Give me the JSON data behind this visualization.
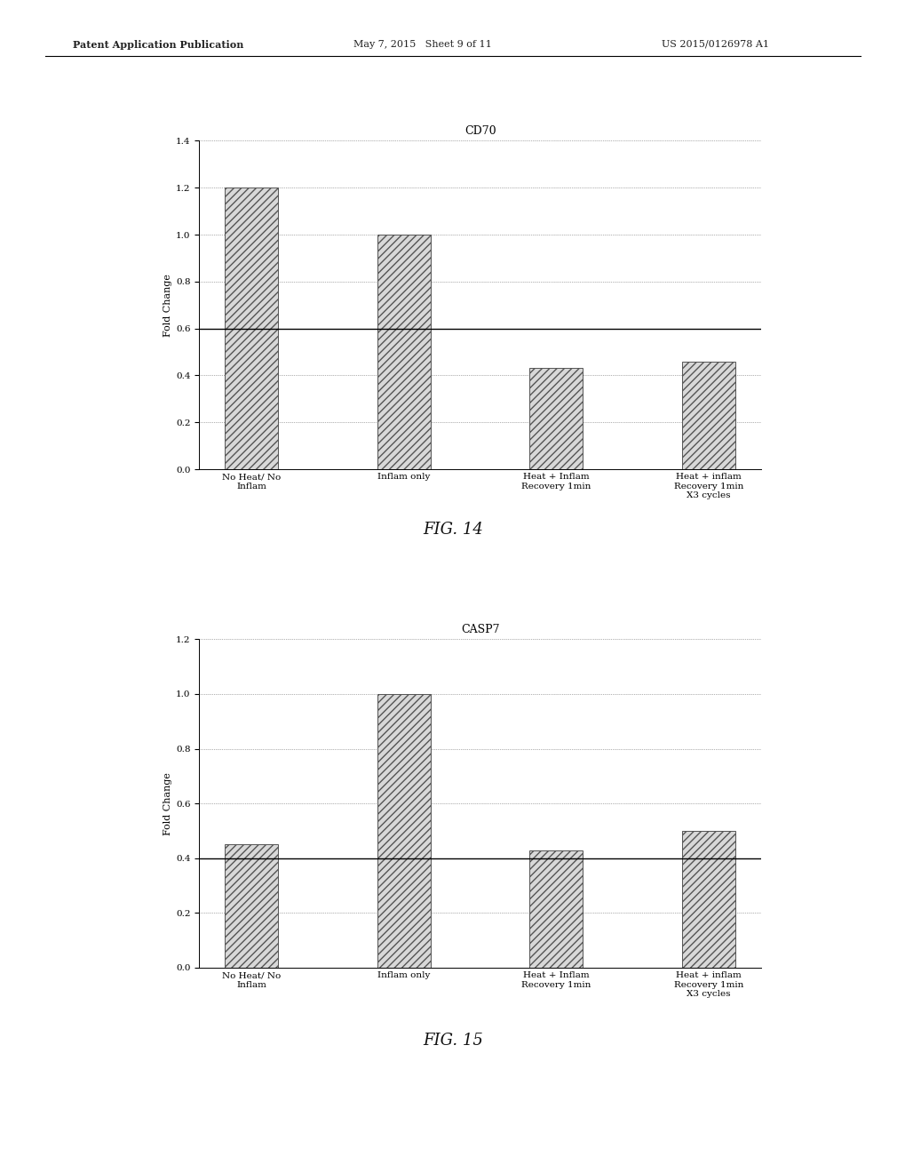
{
  "chart1": {
    "title": "CD70",
    "ylabel": "Fold Change",
    "categories": [
      "No Heat/ No\nInflam",
      "Inflam only",
      "Heat + Inflam\nRecovery 1min",
      "Heat + inflam\nRecovery 1min\nX3 cycles"
    ],
    "values": [
      1.2,
      1.0,
      0.43,
      0.46
    ],
    "ylim": [
      0,
      1.4
    ],
    "yticks": [
      0,
      0.2,
      0.4,
      0.6,
      0.8,
      1.0,
      1.2,
      1.4
    ],
    "hline_y": 0.6,
    "fig_label": "FIG. 14"
  },
  "chart2": {
    "title": "CASP7",
    "ylabel": "Fold Change",
    "categories": [
      "No Heat/ No\nInflam",
      "Inflam only",
      "Heat + Inflam\nRecovery 1min",
      "Heat + inflam\nRecovery 1min\nX3 cycles"
    ],
    "values": [
      0.45,
      1.0,
      0.43,
      0.5
    ],
    "ylim": [
      0,
      1.2
    ],
    "yticks": [
      0,
      0.2,
      0.4,
      0.6,
      0.8,
      1.0,
      1.2
    ],
    "hline_y": 0.4,
    "fig_label": "FIG. 15"
  },
  "header_left": "Patent Application Publication",
  "header_mid": "May 7, 2015   Sheet 9 of 11",
  "header_right": "US 2015/0126978 A1",
  "bar_facecolor": "#d8d8d8",
  "hatch_pattern": "////",
  "bar_edgecolor": "#555555",
  "background_color": "#ffffff",
  "title_fontsize": 9,
  "axis_label_fontsize": 8,
  "tick_fontsize": 7.5,
  "xlabel_fontsize": 7.5,
  "fig_label_fontsize": 13
}
